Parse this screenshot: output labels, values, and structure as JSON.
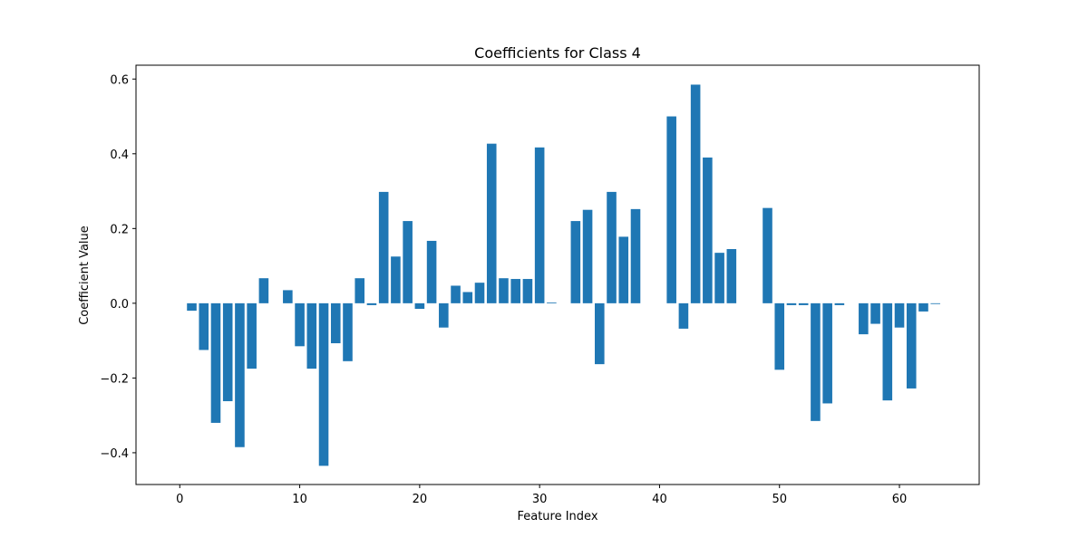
{
  "chart_data": {
    "type": "bar",
    "title": "Coefficients for Class 4",
    "xlabel": "Feature Index",
    "ylabel": "Coefficient Value",
    "xlim": [
      -3.65,
      66.65
    ],
    "ylim": [
      -0.485,
      0.637
    ],
    "xticks": [
      0,
      10,
      20,
      30,
      40,
      50,
      60
    ],
    "xtick_labels": [
      "0",
      "10",
      "20",
      "30",
      "40",
      "50",
      "60"
    ],
    "yticks": [
      -0.4,
      -0.2,
      0.0,
      0.2,
      0.4,
      0.6
    ],
    "ytick_labels": [
      "−0.4",
      "−0.2",
      "0.0",
      "0.2",
      "0.4",
      "0.6"
    ],
    "bar_color": "#1f77b4",
    "grid": false,
    "x": [
      0,
      1,
      2,
      3,
      4,
      5,
      6,
      7,
      8,
      9,
      10,
      11,
      12,
      13,
      14,
      15,
      16,
      17,
      18,
      19,
      20,
      21,
      22,
      23,
      24,
      25,
      26,
      27,
      28,
      29,
      30,
      31,
      32,
      33,
      34,
      35,
      36,
      37,
      38,
      39,
      40,
      41,
      42,
      43,
      44,
      45,
      46,
      47,
      48,
      49,
      50,
      51,
      52,
      53,
      54,
      55,
      56,
      57,
      58,
      59,
      60,
      61,
      62,
      63
    ],
    "values": [
      0.0,
      -0.02,
      -0.125,
      -0.32,
      -0.262,
      -0.385,
      -0.175,
      0.067,
      0.0,
      0.035,
      -0.115,
      -0.175,
      -0.435,
      -0.107,
      -0.155,
      0.067,
      -0.005,
      0.298,
      0.125,
      0.22,
      -0.015,
      0.167,
      -0.065,
      0.047,
      0.03,
      0.055,
      0.427,
      0.067,
      0.065,
      0.065,
      0.417,
      0.002,
      0.0,
      0.22,
      0.25,
      -0.163,
      0.298,
      0.178,
      0.252,
      0.0,
      0.0,
      0.5,
      -0.068,
      0.585,
      0.39,
      0.135,
      0.145,
      0.0,
      0.0,
      0.255,
      -0.178,
      -0.005,
      -0.005,
      -0.315,
      -0.268,
      -0.005,
      0.0,
      -0.083,
      -0.055,
      -0.26,
      -0.065,
      -0.228,
      -0.022,
      -0.002
    ]
  }
}
